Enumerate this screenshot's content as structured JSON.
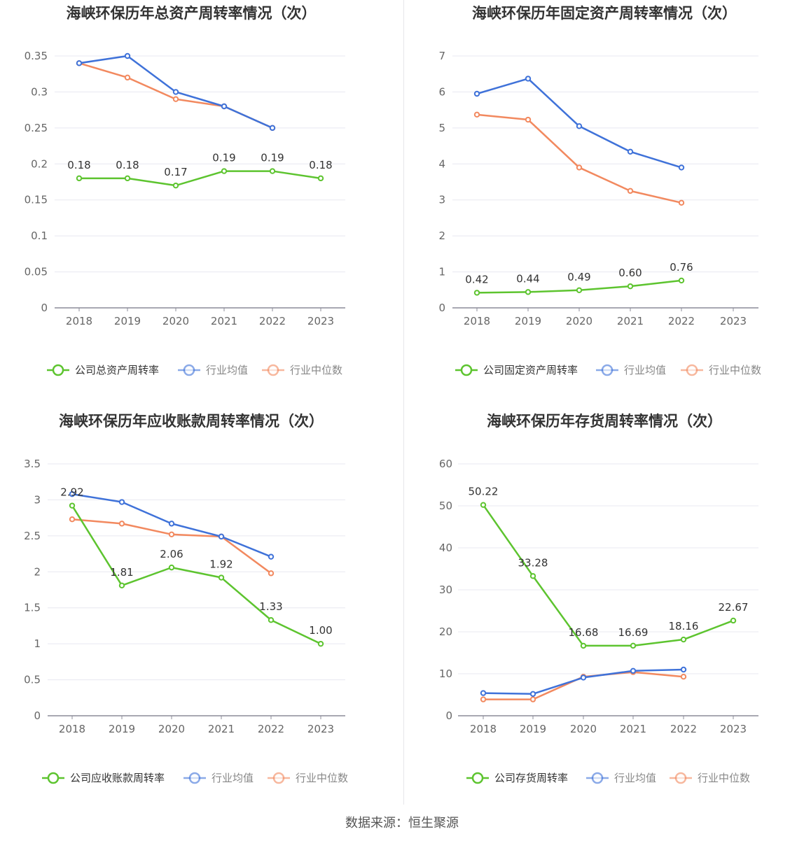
{
  "colors": {
    "company": "#5dc42f",
    "avg": "#3f72d9",
    "median": "#f2895f",
    "grid": "#e8e8f0",
    "axis": "#8c8c99"
  },
  "charts": [
    {
      "title": "海峡环保历年总资产周转率情况（次）",
      "chart_data": {
        "type": "line",
        "categories": [
          "2018",
          "2019",
          "2020",
          "2021",
          "2022",
          "2023"
        ],
        "ylim": [
          0,
          0.35
        ],
        "yticks": [
          "0",
          "0.05",
          "0.1",
          "0.15",
          "0.2",
          "0.25",
          "0.3",
          "0.35"
        ],
        "series": [
          {
            "name": "公司总资产周转率",
            "values": [
              0.18,
              0.18,
              0.17,
              0.19,
              0.19,
              0.18
            ],
            "labels": [
              "0.18",
              "0.18",
              "0.17",
              "0.19",
              "0.19",
              "0.18"
            ]
          },
          {
            "name": "行业均值",
            "values": [
              0.34,
              0.35,
              0.3,
              0.28,
              0.25,
              null
            ]
          },
          {
            "name": "行业中位数",
            "values": [
              0.34,
              0.32,
              0.29,
              0.28,
              0.25,
              null
            ]
          }
        ]
      }
    },
    {
      "title": "海峡环保历年固定资产周转率情况（次）",
      "chart_data": {
        "type": "line",
        "categories": [
          "2018",
          "2019",
          "2020",
          "2021",
          "2022",
          "2023"
        ],
        "ylim": [
          0,
          7
        ],
        "yticks": [
          "0",
          "1",
          "2",
          "3",
          "4",
          "5",
          "6",
          "7"
        ],
        "series": [
          {
            "name": "公司固定资产周转率",
            "values": [
              0.42,
              0.44,
              0.49,
              0.6,
              0.76,
              null
            ],
            "labels": [
              "0.42",
              "0.44",
              "0.49",
              "0.60",
              "0.76",
              null
            ]
          },
          {
            "name": "行业均值",
            "values": [
              5.95,
              6.37,
              5.05,
              4.34,
              3.9,
              null
            ]
          },
          {
            "name": "行业中位数",
            "values": [
              5.37,
              5.23,
              3.9,
              3.25,
              2.92,
              null
            ]
          }
        ]
      }
    },
    {
      "title": "海峡环保历年应收账款周转率情况（次）",
      "chart_data": {
        "type": "line",
        "categories": [
          "2018",
          "2019",
          "2020",
          "2021",
          "2022",
          "2023"
        ],
        "ylim": [
          0,
          3.5
        ],
        "yticks": [
          "0",
          "0.5",
          "1",
          "1.5",
          "2",
          "2.5",
          "3",
          "3.5"
        ],
        "series": [
          {
            "name": "公司应收账款周转率",
            "values": [
              2.92,
              1.81,
              2.06,
              1.92,
              1.33,
              1.0
            ],
            "labels": [
              "2.92",
              "1.81",
              "2.06",
              "1.92",
              "1.33",
              "1.00"
            ]
          },
          {
            "name": "行业均值",
            "values": [
              3.08,
              2.97,
              2.67,
              2.49,
              2.21,
              null
            ]
          },
          {
            "name": "行业中位数",
            "values": [
              2.73,
              2.67,
              2.52,
              2.49,
              1.98,
              null
            ]
          }
        ]
      }
    },
    {
      "title": "海峡环保历年存货周转率情况（次）",
      "chart_data": {
        "type": "line",
        "categories": [
          "2018",
          "2019",
          "2020",
          "2021",
          "2022",
          "2023"
        ],
        "ylim": [
          0,
          60
        ],
        "yticks": [
          "0",
          "10",
          "20",
          "30",
          "40",
          "50",
          "60"
        ],
        "series": [
          {
            "name": "公司存货周转率",
            "values": [
              50.22,
              33.28,
              16.68,
              16.69,
              18.16,
              22.67
            ],
            "labels": [
              "50.22",
              "33.28",
              "16.68",
              "16.69",
              "18.16",
              "22.67"
            ]
          },
          {
            "name": "行业均值",
            "values": [
              5.4,
              5.2,
              9.1,
              10.7,
              11.0,
              null
            ]
          },
          {
            "name": "行业中位数",
            "values": [
              3.9,
              3.9,
              9.3,
              10.4,
              9.3,
              null
            ]
          }
        ]
      }
    }
  ],
  "footer": "数据来源：恒生聚源"
}
